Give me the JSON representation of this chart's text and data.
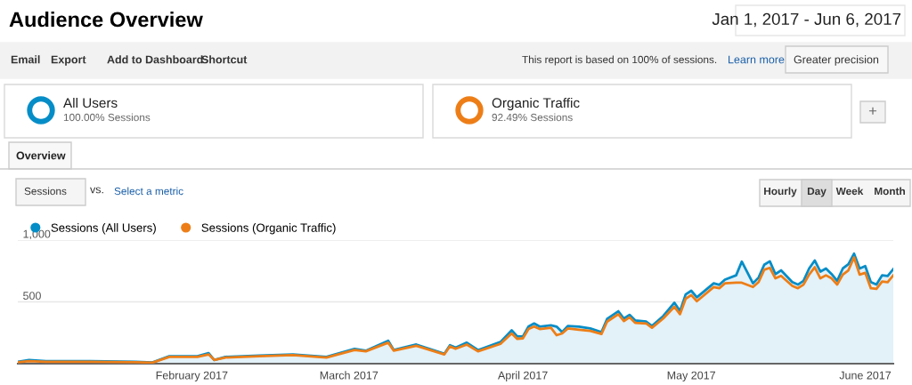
{
  "chart_data": {
    "type": "line",
    "title": "Audience Overview",
    "subtitle": "Jan 1, 2017 - Jun 6, 2017",
    "annotations": [
      "Email",
      "Export",
      "Add to Dashboard",
      "Shortcut",
      "This report is based on 100% of sessions.",
      "Learn more",
      "Greater precision",
      "All Users",
      "100.00% Sessions",
      "Organic Traffic",
      "92.49% Sessions",
      "+",
      "Overview",
      "Sessions",
      "vs.",
      "Select a metric",
      "Hourly",
      "Day",
      "Week",
      "Month"
    ],
    "x": [
      "2017-01-01",
      "2017-01-03",
      "2017-01-06",
      "2017-01-14",
      "2017-01-22",
      "2017-01-25",
      "2017-01-28",
      "2017-02-02",
      "2017-02-04",
      "2017-02-05",
      "2017-02-07",
      "2017-02-13",
      "2017-02-19",
      "2017-02-25",
      "2017-03-02",
      "2017-03-04",
      "2017-03-08",
      "2017-03-09",
      "2017-03-13",
      "2017-03-18",
      "2017-03-19",
      "2017-03-20",
      "2017-03-22",
      "2017-03-24",
      "2017-03-28",
      "2017-03-30",
      "2017-03-31",
      "2017-04-01",
      "2017-04-02",
      "2017-04-03",
      "2017-04-04",
      "2017-04-06",
      "2017-04-07",
      "2017-04-08",
      "2017-04-09",
      "2017-04-11",
      "2017-04-13",
      "2017-04-15",
      "2017-04-16",
      "2017-04-18",
      "2017-04-19",
      "2017-04-20",
      "2017-04-21",
      "2017-04-23",
      "2017-04-24",
      "2017-04-26",
      "2017-04-28",
      "2017-04-29",
      "2017-04-30",
      "2017-05-01",
      "2017-05-02",
      "2017-05-05",
      "2017-05-06",
      "2017-05-07",
      "2017-05-09",
      "2017-05-10",
      "2017-05-12",
      "2017-05-13",
      "2017-05-14",
      "2017-05-15",
      "2017-05-16",
      "2017-05-17",
      "2017-05-19",
      "2017-05-20",
      "2017-05-21",
      "2017-05-22",
      "2017-05-23",
      "2017-05-24",
      "2017-05-25",
      "2017-05-26",
      "2017-05-27",
      "2017-05-28",
      "2017-05-29",
      "2017-05-30",
      "2017-05-31",
      "2017-06-01",
      "2017-06-02",
      "2017-06-03",
      "2017-06-04",
      "2017-06-05",
      "2017-06-06"
    ],
    "series": [
      {
        "name": "Sessions (All Users)",
        "type": "area",
        "color": "#058dc7",
        "values": [
          15,
          30,
          20,
          20,
          15,
          10,
          60,
          60,
          85,
          30,
          55,
          65,
          75,
          55,
          120,
          105,
          185,
          110,
          155,
          80,
          150,
          130,
          170,
          110,
          175,
          270,
          220,
          220,
          300,
          325,
          300,
          310,
          300,
          255,
          305,
          300,
          285,
          255,
          362,
          424,
          365,
          395,
          350,
          340,
          305,
          385,
          493,
          425,
          560,
          590,
          537,
          650,
          638,
          680,
          715,
          826,
          650,
          697,
          800,
          828,
          725,
          755,
          660,
          640,
          670,
          770,
          835,
          745,
          770,
          725,
          670,
          770,
          805,
          890,
          770,
          790,
          660,
          640,
          715,
          710,
          765
        ]
      },
      {
        "name": "Sessions (Organic Traffic)",
        "color": "#ed7e17",
        "values": [
          12,
          20,
          15,
          15,
          12,
          8,
          55,
          55,
          75,
          30,
          50,
          60,
          70,
          50,
          110,
          100,
          170,
          105,
          145,
          75,
          140,
          120,
          155,
          100,
          160,
          245,
          200,
          205,
          280,
          300,
          280,
          290,
          230,
          245,
          285,
          275,
          265,
          240,
          340,
          400,
          345,
          375,
          330,
          325,
          290,
          365,
          460,
          400,
          525,
          555,
          505,
          620,
          610,
          650,
          655,
          655,
          620,
          660,
          760,
          775,
          690,
          710,
          630,
          610,
          640,
          720,
          780,
          690,
          715,
          690,
          640,
          720,
          755,
          860,
          720,
          735,
          610,
          605,
          665,
          660,
          715
        ]
      }
    ],
    "xlim": [
      "2017-01-01",
      "2017-06-06"
    ],
    "xticks": [
      {
        "value": "2017-02-01",
        "label": "February 2017"
      },
      {
        "value": "2017-03-01",
        "label": "March 2017"
      },
      {
        "value": "2017-04-01",
        "label": "April 2017"
      },
      {
        "value": "2017-05-01",
        "label": "May 2017"
      },
      {
        "value": "2017-06-01",
        "label": "June 2017"
      }
    ],
    "ylim": [
      0,
      1000
    ],
    "yticks": [
      {
        "value": 500,
        "label": "500"
      },
      {
        "value": 1000,
        "label": "1,000"
      }
    ],
    "grid": "y",
    "legend": "top left",
    "marker": "none",
    "line_style": "solid"
  }
}
